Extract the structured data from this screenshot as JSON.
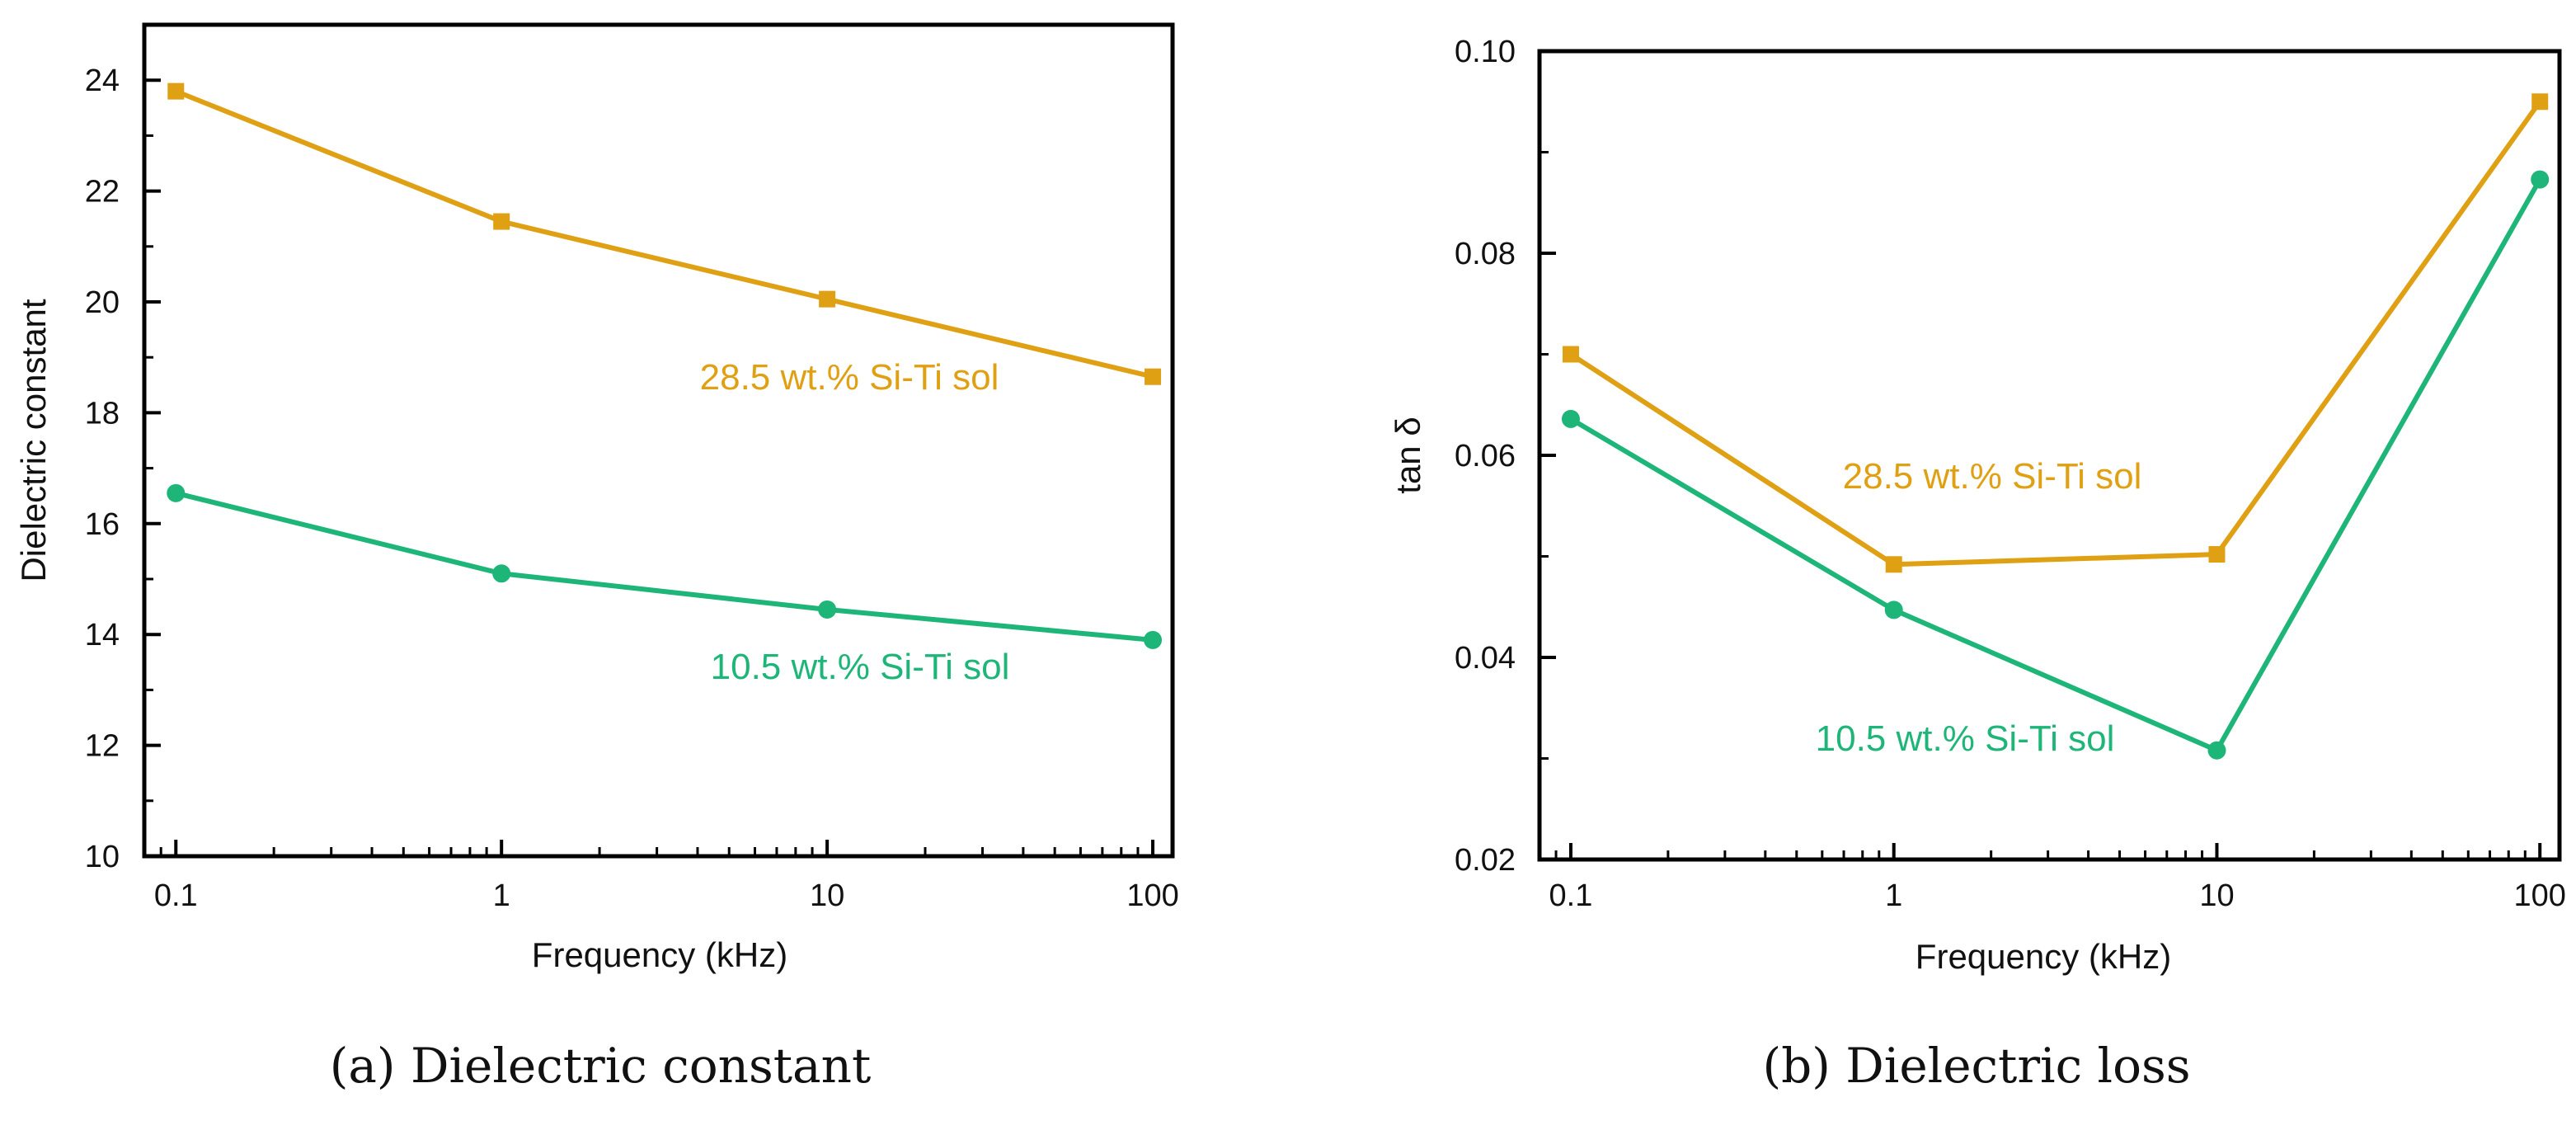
{
  "colors": {
    "orange": "#e0a014",
    "green": "#1db578",
    "axis": "#000000"
  },
  "chart_data": [
    {
      "type": "line",
      "caption": "(a) Dielectric constant",
      "xlabel": "Frequency (kHz)",
      "ylabel": "Dielectric constant",
      "xscale": "log",
      "xlim": [
        0.08,
        115
      ],
      "ylim": [
        10,
        25
      ],
      "xticks": [
        0.1,
        1,
        10,
        100
      ],
      "xtick_labels": [
        "0.1",
        "1",
        "10",
        "100"
      ],
      "yticks": [
        10,
        12,
        14,
        16,
        18,
        20,
        22,
        24
      ],
      "ytick_labels": [
        "10",
        "12",
        "14",
        "16",
        "18",
        "20",
        "22",
        "24"
      ],
      "x": [
        0.1,
        1,
        10,
        100
      ],
      "series": [
        {
          "name": "28.5 wt.% Si-Ti sol",
          "marker": "square",
          "color": "#e0a014",
          "values": [
            23.8,
            21.45,
            20.05,
            18.65
          ]
        },
        {
          "name": "10.5 wt.% Si-Ti sol",
          "marker": "circle",
          "color": "#1db578",
          "values": [
            16.55,
            15.1,
            14.45,
            13.9
          ]
        }
      ]
    },
    {
      "type": "line",
      "caption": "(b) Dielectric loss",
      "xlabel": "Frequency (kHz)",
      "ylabel": "tan δ",
      "xscale": "log",
      "xlim": [
        0.08,
        115
      ],
      "ylim": [
        0.02,
        0.1
      ],
      "xticks": [
        0.1,
        1,
        10,
        100
      ],
      "xtick_labels": [
        "0.1",
        "1",
        "10",
        "100"
      ],
      "yticks": [
        0.02,
        0.04,
        0.06,
        0.08,
        0.1
      ],
      "ytick_labels": [
        "0.02",
        "0.04",
        "0.06",
        "0.08",
        "0.10"
      ],
      "x": [
        0.1,
        1,
        10,
        100
      ],
      "series": [
        {
          "name": "28.5 wt.% Si-Ti sol",
          "marker": "square",
          "color": "#e0a014",
          "values": [
            0.07,
            0.0492,
            0.0502,
            0.095
          ]
        },
        {
          "name": "10.5 wt.% Si-Ti sol",
          "marker": "circle",
          "color": "#1db578",
          "values": [
            0.0636,
            0.0447,
            0.0308,
            0.0873
          ]
        }
      ]
    }
  ]
}
